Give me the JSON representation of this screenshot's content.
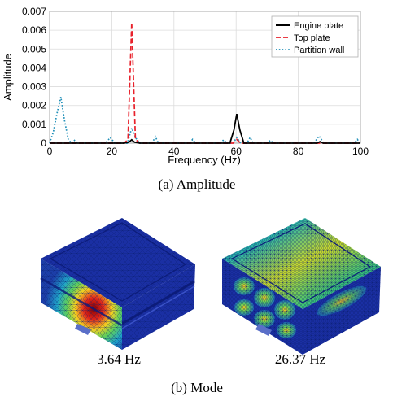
{
  "chart_data": {
    "type": "line",
    "xlabel": "Frequency (Hz)",
    "ylabel": "Amplitude",
    "xlim": [
      0,
      100
    ],
    "ylim": [
      0,
      0.007
    ],
    "x_ticks": [
      0,
      20,
      40,
      60,
      80,
      100
    ],
    "y_ticks": [
      0,
      0.001,
      0.002,
      0.003,
      0.004,
      0.005,
      0.006,
      0.007
    ],
    "legend_position": "top-right",
    "grid": true,
    "series": [
      {
        "name": "Engine plate",
        "color": "#000000",
        "dash": "solid",
        "x": [
          0,
          24,
          25.5,
          26.4,
          27.3,
          29,
          58,
          59.3,
          60.2,
          61.2,
          62.5,
          86,
          87,
          88,
          100
        ],
        "y": [
          0,
          0,
          5e-05,
          0.00018,
          5e-05,
          0,
          0,
          0.0007,
          0.00155,
          0.0007,
          0,
          0,
          8e-05,
          0,
          0
        ]
      },
      {
        "name": "Top plate",
        "color": "#e8212b",
        "dash": "dash",
        "x": [
          0,
          24,
          25.2,
          25.8,
          26.4,
          27.0,
          27.6,
          29,
          59,
          60.2,
          61.4,
          100
        ],
        "y": [
          0,
          0,
          0.0002,
          0.0033,
          0.0064,
          0.0033,
          0.0002,
          0,
          0,
          0.0002,
          0,
          0
        ]
      },
      {
        "name": "Partition wall",
        "color": "#1f8fb8",
        "dash": "dot",
        "x": [
          0,
          1.2,
          2.4,
          3.6,
          4.8,
          6.0,
          7,
          8,
          9,
          10,
          18,
          19.5,
          21,
          25,
          26.4,
          27.8,
          29,
          33,
          34,
          35,
          45,
          46,
          47,
          55,
          56,
          57,
          59,
          60.2,
          61.5,
          63.5,
          64.5,
          65.5,
          70,
          71,
          72,
          85,
          86.7,
          88.2,
          98,
          99,
          100
        ],
        "y": [
          0,
          0.0006,
          0.0016,
          0.00245,
          0.0012,
          0.0002,
          0,
          0.00015,
          0,
          0,
          0,
          0.0003,
          0,
          0,
          0.0008,
          0.00025,
          0,
          0,
          0.00035,
          0,
          0,
          0.0002,
          0,
          0,
          0.00018,
          0,
          0,
          0.0003,
          0,
          0,
          0.0003,
          0,
          0,
          0.00015,
          0,
          0,
          0.00038,
          0,
          0,
          0.0002,
          0
        ]
      }
    ]
  },
  "captions": {
    "amplitude": "(a)  Amplitude",
    "mode": "(b)  Mode",
    "mode_left": "3.64  Hz",
    "mode_right": "26.37  Hz"
  }
}
